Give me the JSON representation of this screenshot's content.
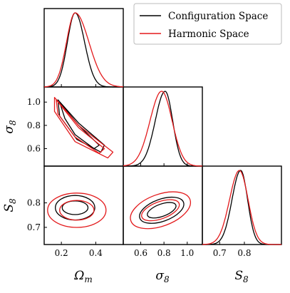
{
  "chart_data": {
    "type": "corner",
    "parameters": [
      {
        "symbol": "Ω",
        "sub": "m",
        "range": [
          0.1,
          0.56
        ],
        "ticks": [
          "0.2",
          "0.4"
        ],
        "tick_values": [
          0.2,
          0.4
        ]
      },
      {
        "symbol": "σ",
        "sub": "8",
        "range": [
          0.45,
          1.13
        ],
        "ticks": [
          "0.6",
          "0.8",
          "1.0"
        ],
        "tick_values": [
          0.6,
          0.8,
          1.0
        ]
      },
      {
        "symbol": "S",
        "sub": "8",
        "range": [
          0.63,
          0.95
        ],
        "ticks": [
          "0.7",
          "0.8"
        ],
        "tick_values": [
          0.7,
          0.8
        ]
      }
    ],
    "legend": {
      "placement": "top-right",
      "entries": [
        {
          "label": "Configuration Space",
          "color": "#000000"
        },
        {
          "label": "Harmonic Space",
          "color": "#e31a1c"
        }
      ]
    },
    "series": [
      {
        "name": "Configuration Space",
        "color": "#000000",
        "marginals": [
          {
            "mode": 0.28,
            "sigma_left": 0.045,
            "sigma_right": 0.055
          },
          {
            "mode": 0.81,
            "sigma_left": 0.085,
            "sigma_right": 0.065
          },
          {
            "mode": 0.785,
            "sigma_left": 0.035,
            "sigma_right": 0.028
          }
        ],
        "contours": {
          "om_s8": {
            "center": [
              0.28,
              0.98
            ],
            "inner": [
              [
                0.19,
                1.0
              ],
              [
                0.3,
                0.8
              ],
              [
                0.42,
                0.63
              ],
              [
                0.39,
                0.6
              ],
              [
                0.28,
                0.72
              ],
              [
                0.22,
                0.86
              ]
            ],
            "outer": [
              [
                0.18,
                1.02
              ],
              [
                0.3,
                0.82
              ],
              [
                0.45,
                0.63
              ],
              [
                0.43,
                0.57
              ],
              [
                0.29,
                0.68
              ],
              [
                0.19,
                0.88
              ]
            ]
          },
          "om_S8": {
            "center": [
              0.28,
              0.78
            ],
            "rx": [
              0.075,
              0.115
            ],
            "ry": [
              0.028,
              0.05
            ]
          },
          "s8_S8": {
            "center": [
              0.78,
              0.77
            ],
            "rx": [
              0.13,
              0.2
            ],
            "ry": [
              0.025,
              0.045
            ]
          }
        }
      },
      {
        "name": "Harmonic Space",
        "color": "#e31a1c",
        "marginals": [
          {
            "mode": 0.28,
            "sigma_left": 0.05,
            "sigma_right": 0.08
          },
          {
            "mode": 0.78,
            "sigma_left": 0.1,
            "sigma_right": 0.09
          },
          {
            "mode": 0.78,
            "sigma_left": 0.04,
            "sigma_right": 0.035
          }
        ],
        "contours": {
          "om_s8": {
            "center": [
              0.3,
              0.8
            ],
            "inner": [
              [
                0.17,
                1.02
              ],
              [
                0.3,
                0.78
              ],
              [
                0.45,
                0.6
              ],
              [
                0.42,
                0.56
              ],
              [
                0.28,
                0.7
              ],
              [
                0.18,
                0.9
              ]
            ],
            "outer": [
              [
                0.16,
                1.04
              ],
              [
                0.3,
                0.8
              ],
              [
                0.5,
                0.57
              ],
              [
                0.47,
                0.52
              ],
              [
                0.28,
                0.66
              ],
              [
                0.16,
                0.92
              ]
            ]
          },
          "om_S8": {
            "center": [
              0.29,
              0.77
            ],
            "rx": [
              0.1,
              0.17
            ],
            "ry": [
              0.04,
              0.07
            ]
          },
          "s8_S8": {
            "center": [
              0.77,
              0.77
            ],
            "rx": [
              0.17,
              0.27
            ],
            "ry": [
              0.035,
              0.065
            ]
          }
        }
      }
    ]
  }
}
